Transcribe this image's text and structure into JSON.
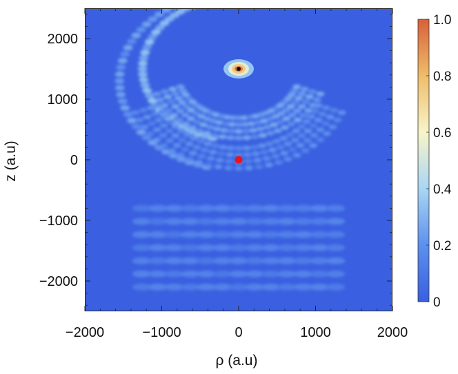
{
  "chart_data": {
    "type": "heatmap",
    "title": "",
    "xlabel": "ρ (a.u)",
    "ylabel": "z (a.u)",
    "xlim": [
      -2000,
      2000
    ],
    "ylim": [
      -2500,
      2500
    ],
    "x_ticks": [
      -2000,
      -1000,
      0,
      1000,
      2000
    ],
    "y_ticks": [
      -2000,
      -1000,
      0,
      1000,
      2000
    ],
    "x_tick_labels": [
      "−2000",
      "−1000",
      "0",
      "1000",
      "2000"
    ],
    "y_tick_labels": [
      "−2000",
      "−1000",
      "0",
      "1000",
      "2000"
    ],
    "colorbar": {
      "range": [
        0,
        1
      ],
      "ticks": [
        0,
        0.2,
        0.4,
        0.6,
        0.8,
        1.0
      ],
      "tick_labels": [
        "0",
        "0.2",
        "0.4",
        "0.6",
        "0.8",
        "1.0"
      ],
      "stops": [
        {
          "value": 0.0,
          "color": "#3a5fe0"
        },
        {
          "value": 0.2,
          "color": "#5d90ee"
        },
        {
          "value": 0.4,
          "color": "#a9d6f4"
        },
        {
          "value": 0.6,
          "color": "#f8f4c8"
        },
        {
          "value": 0.8,
          "color": "#efbd6a"
        },
        {
          "value": 1.0,
          "color": "#d8603a"
        }
      ]
    },
    "background_color": "#3a5fe0",
    "markers": [
      {
        "x": 0,
        "z": 0,
        "color": "#e8141c"
      },
      {
        "x": 0,
        "z": 1500,
        "color": "#111111"
      }
    ],
    "features": [
      {
        "kind": "source-peak",
        "x": 0,
        "z": 1500,
        "peak_value": 1.0
      },
      {
        "kind": "interference-arc",
        "center_x": 0,
        "center_z": 1500,
        "radius": 1250,
        "intensity": 0.3
      },
      {
        "kind": "interference-arc",
        "center_x": 0,
        "center_z": 1300,
        "radius": 1550,
        "intensity": 0.22
      },
      {
        "kind": "lower-fringes",
        "z_range": [
          -2100,
          -800
        ],
        "intensity": 0.12
      }
    ]
  }
}
